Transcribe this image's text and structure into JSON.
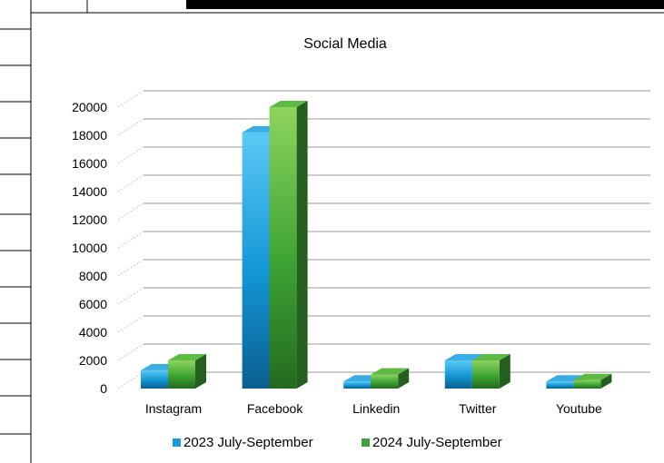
{
  "chart_data": {
    "type": "bar",
    "title": "Social Media",
    "categories": [
      "Instagram",
      "Facebook",
      "Linkedin",
      "Twitter",
      "Youtube"
    ],
    "series": [
      {
        "name": "2023 July-September",
        "color": "#1e9fd8",
        "values": [
          1300,
          18200,
          500,
          2000,
          500
        ]
      },
      {
        "name": "2024 July-September",
        "color": "#3ea33a",
        "values": [
          2000,
          20000,
          1000,
          2000,
          600
        ]
      }
    ],
    "ylim": [
      0,
      20000
    ],
    "yticks": [
      0,
      2000,
      4000,
      6000,
      8000,
      10000,
      12000,
      14000,
      16000,
      18000,
      20000
    ],
    "grid": true,
    "legend_position": "bottom",
    "style": "3d-clustered-column"
  }
}
